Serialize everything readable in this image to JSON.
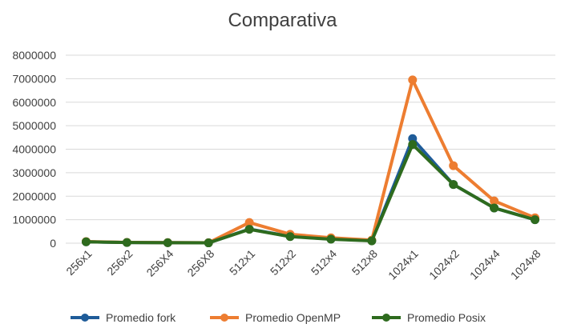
{
  "chart_data": {
    "type": "line",
    "title": "Comparativa",
    "xlabel": "",
    "ylabel": "",
    "categories": [
      "256x1",
      "256x2",
      "256X4",
      "256X8",
      "512x1",
      "512x2",
      "512x4",
      "512x8",
      "1024x1",
      "1024x2",
      "1024x4",
      "1024x8"
    ],
    "ylim": [
      0,
      8000000
    ],
    "yticks": [
      "0",
      "1000000",
      "2000000",
      "3000000",
      "4000000",
      "5000000",
      "6000000",
      "7000000",
      "8000000"
    ],
    "grid": true,
    "legend_position": "bottom",
    "series": [
      {
        "name": "Promedio fork",
        "color": "#1f5c99",
        "values": [
          60000,
          30000,
          20000,
          15000,
          600000,
          290000,
          180000,
          110000,
          4450000,
          2500000,
          1500000,
          1000000
        ]
      },
      {
        "name": "Promedio OpenMP",
        "color": "#ed7d31",
        "values": [
          70000,
          35000,
          25000,
          20000,
          880000,
          380000,
          230000,
          130000,
          6950000,
          3300000,
          1800000,
          1080000
        ]
      },
      {
        "name": "Promedio Posix",
        "color": "#2e6b1e",
        "values": [
          60000,
          30000,
          20000,
          15000,
          590000,
          280000,
          170000,
          100000,
          4200000,
          2500000,
          1500000,
          1000000
        ]
      }
    ]
  }
}
